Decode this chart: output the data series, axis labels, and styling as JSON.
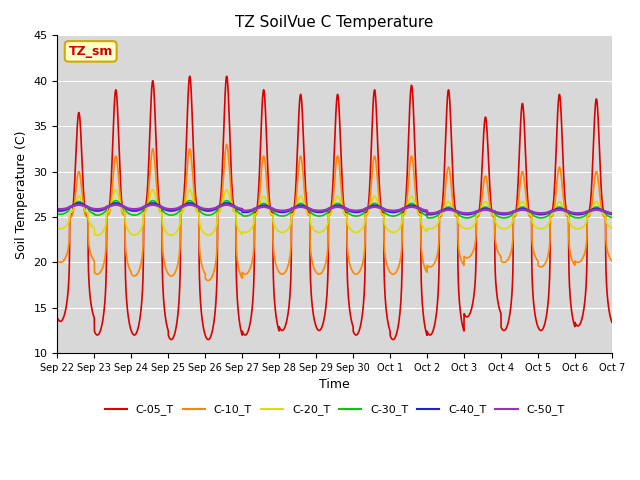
{
  "title": "TZ SoilVue C Temperature",
  "ylabel": "Soil Temperature (C)",
  "xlabel": "Time",
  "ylim": [
    10,
    45
  ],
  "yticks": [
    10,
    15,
    20,
    25,
    30,
    35,
    40,
    45
  ],
  "annotation_text": "TZ_sm",
  "annotation_box_color": "#ffffcc",
  "annotation_box_edge": "#ccaa00",
  "annotation_text_color": "#cc0000",
  "bg_color": "#d8d8d8",
  "x_tick_labels": [
    "Sep 22",
    "Sep 23",
    "Sep 24",
    "Sep 25",
    "Sep 26",
    "Sep 27",
    "Sep 28",
    "Sep 29",
    "Sep 30",
    "Oct 1",
    "Oct 2",
    "Oct 3",
    "Oct 4",
    "Oct 5",
    "Oct 6",
    "Oct 7"
  ],
  "n_days": 15,
  "points_per_day": 480,
  "series_params": {
    "C-05_T": {
      "color": "#dd0000",
      "amp_vals": [
        11.5,
        13.5,
        14.0,
        14.5,
        14.5,
        13.5,
        13.0,
        13.0,
        13.5,
        14.0,
        13.5,
        11.0,
        12.5,
        13.0,
        12.5
      ],
      "mean_vals": [
        25.0,
        25.5,
        26.0,
        26.0,
        26.0,
        25.5,
        25.5,
        25.5,
        25.5,
        25.5,
        25.5,
        25.0,
        25.0,
        25.5,
        25.5
      ],
      "peak_sharpness": 4.0,
      "lw": 1.2
    },
    "C-10_T": {
      "color": "#ff8800",
      "amp_vals": [
        5.0,
        6.5,
        7.0,
        7.0,
        7.5,
        6.5,
        6.5,
        6.5,
        6.5,
        6.5,
        5.5,
        4.5,
        5.0,
        5.5,
        5.0
      ],
      "mean_vals": [
        25.0,
        25.2,
        25.5,
        25.5,
        25.5,
        25.2,
        25.2,
        25.2,
        25.2,
        25.2,
        25.0,
        25.0,
        25.0,
        25.0,
        25.0
      ],
      "peak_sharpness": 4.0,
      "lw": 1.2
    },
    "C-20_T": {
      "color": "#dddd00",
      "amp_vals": [
        1.8,
        2.5,
        2.5,
        2.5,
        2.5,
        2.0,
        2.0,
        2.0,
        2.0,
        2.0,
        1.5,
        1.5,
        1.5,
        1.5,
        1.5
      ],
      "mean_vals": [
        25.5,
        25.5,
        25.5,
        25.5,
        25.5,
        25.3,
        25.3,
        25.3,
        25.3,
        25.3,
        25.2,
        25.2,
        25.2,
        25.2,
        25.2
      ],
      "peak_sharpness": 3.0,
      "lw": 1.2
    },
    "C-30_T": {
      "color": "#00cc00",
      "amp_vals": [
        0.7,
        0.8,
        0.8,
        0.8,
        0.8,
        0.7,
        0.7,
        0.7,
        0.7,
        0.7,
        0.6,
        0.6,
        0.6,
        0.6,
        0.6
      ],
      "mean_vals": [
        26.0,
        26.0,
        26.0,
        26.0,
        26.0,
        25.8,
        25.8,
        25.8,
        25.8,
        25.8,
        25.5,
        25.5,
        25.5,
        25.5,
        25.5
      ],
      "peak_sharpness": 2.0,
      "lw": 1.2
    },
    "C-40_T": {
      "color": "#2222cc",
      "amp_vals": [
        0.4,
        0.4,
        0.4,
        0.4,
        0.4,
        0.35,
        0.35,
        0.35,
        0.35,
        0.35,
        0.3,
        0.3,
        0.3,
        0.3,
        0.3
      ],
      "mean_vals": [
        26.1,
        26.1,
        26.1,
        26.1,
        26.1,
        25.9,
        25.9,
        25.9,
        25.9,
        25.9,
        25.6,
        25.6,
        25.6,
        25.6,
        25.6
      ],
      "peak_sharpness": 1.5,
      "lw": 1.8
    },
    "C-50_T": {
      "color": "#9933bb",
      "amp_vals": [
        0.25,
        0.25,
        0.25,
        0.25,
        0.25,
        0.22,
        0.22,
        0.22,
        0.22,
        0.22,
        0.2,
        0.2,
        0.2,
        0.2,
        0.2
      ],
      "mean_vals": [
        26.1,
        26.1,
        26.1,
        26.1,
        26.1,
        25.9,
        25.9,
        25.9,
        25.9,
        25.9,
        25.6,
        25.6,
        25.6,
        25.6,
        25.6
      ],
      "peak_sharpness": 1.5,
      "lw": 1.8
    }
  }
}
